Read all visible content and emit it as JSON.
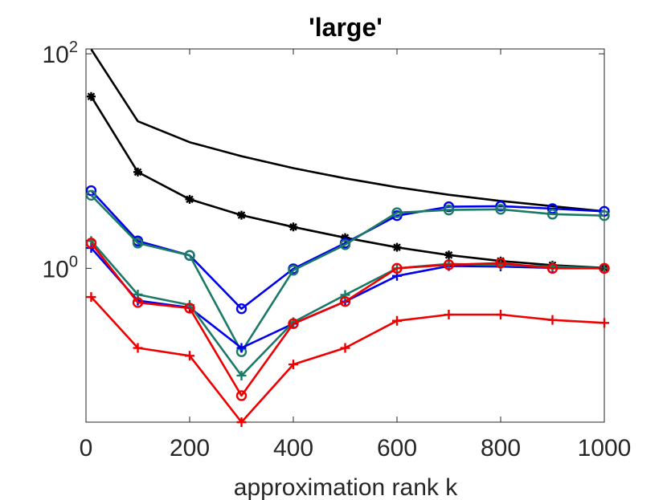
{
  "chart_data": {
    "type": "line",
    "title": "'large'",
    "xlabel": "approximation rank k",
    "ylabel": "",
    "yscale": "log",
    "xlim": [
      0,
      1000
    ],
    "ylim": [
      0.0368,
      111
    ],
    "x_ticks": [
      0,
      200,
      400,
      600,
      800,
      1000
    ],
    "x_tick_labels": [
      "0",
      "200",
      "400",
      "600",
      "800",
      "1000"
    ],
    "y_ticks": [
      {
        "value": 1,
        "base": "10",
        "exp": "0"
      },
      {
        "value": 100,
        "base": "10",
        "exp": "2"
      }
    ],
    "x": [
      10,
      100,
      200,
      300,
      400,
      500,
      600,
      700,
      800,
      900,
      1000
    ],
    "series": [
      {
        "name": "black-solid",
        "color": "#000000",
        "marker": "none",
        "values": [
          110,
          23.5,
          15,
          11.1,
          8.6,
          6.9,
          5.7,
          4.85,
          4.25,
          3.8,
          3.4
        ]
      },
      {
        "name": "black-star",
        "color": "#000000",
        "marker": "star",
        "values": [
          40,
          7.9,
          4.4,
          3.13,
          2.43,
          1.93,
          1.57,
          1.33,
          1.17,
          1.07,
          1.01
        ]
      },
      {
        "name": "blue-circle",
        "color": "#0000ee",
        "marker": "circle",
        "values": [
          5.3,
          1.8,
          1.32,
          0.42,
          0.99,
          1.72,
          3.1,
          3.75,
          3.8,
          3.6,
          3.4
        ]
      },
      {
        "name": "teal-circle",
        "color": "#1a7a66",
        "marker": "circle",
        "values": [
          4.8,
          1.72,
          1.32,
          0.167,
          0.96,
          1.66,
          3.3,
          3.5,
          3.55,
          3.2,
          3.1
        ]
      },
      {
        "name": "blue-plus",
        "color": "#0000ee",
        "marker": "plus",
        "values": [
          1.55,
          0.5,
          0.43,
          0.181,
          0.305,
          0.49,
          0.85,
          1.05,
          1.04,
          1.01,
          1.0
        ]
      },
      {
        "name": "teal-plus",
        "color": "#1a7a66",
        "marker": "plus",
        "values": [
          1.8,
          0.57,
          0.455,
          0.1,
          0.315,
          0.565,
          1.0,
          1.1,
          1.07,
          1.04,
          1.0
        ]
      },
      {
        "name": "red-circle",
        "color": "#ee0000",
        "marker": "circle",
        "values": [
          1.72,
          0.48,
          0.425,
          0.065,
          0.305,
          0.49,
          1.0,
          1.08,
          1.12,
          1.0,
          1.0
        ]
      },
      {
        "name": "red-plus",
        "color": "#ee0000",
        "marker": "plus",
        "values": [
          0.54,
          0.181,
          0.153,
          0.0368,
          0.127,
          0.181,
          0.324,
          0.37,
          0.37,
          0.33,
          0.31
        ]
      }
    ]
  }
}
